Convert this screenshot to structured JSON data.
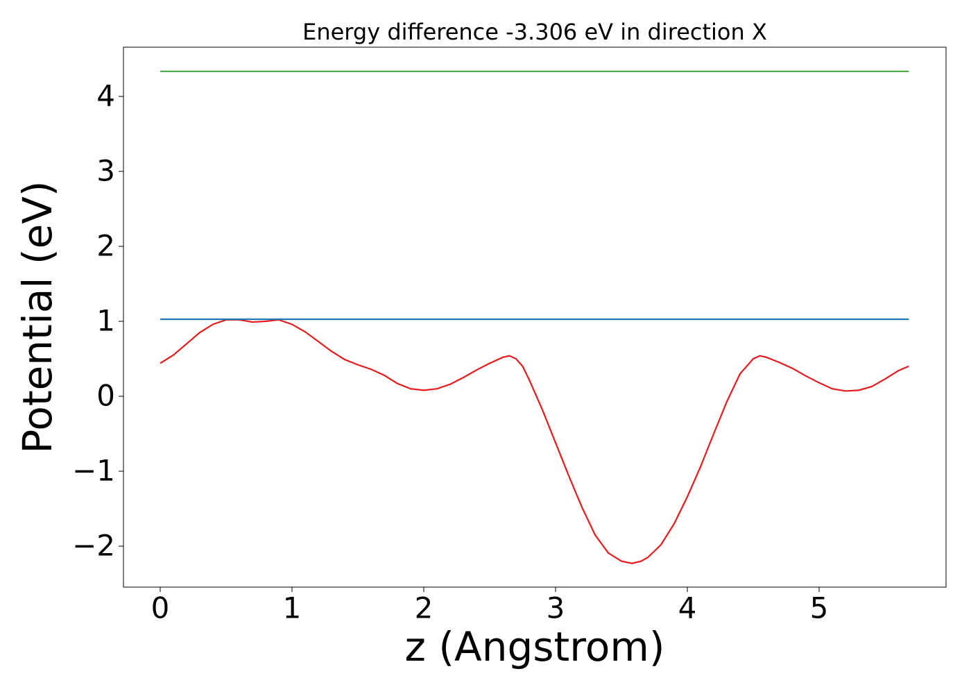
{
  "chart_data": {
    "type": "line",
    "title": "Energy difference -3.306 eV in direction X",
    "xlabel": "z (Angstrom)",
    "ylabel": "Potential (eV)",
    "xlim": [
      -0.279,
      5.963
    ],
    "ylim": [
      -2.546,
      4.657
    ],
    "xticks": [
      0,
      1,
      2,
      3,
      4,
      5
    ],
    "yticks": [
      {
        "value": -2,
        "label": "−2"
      },
      {
        "value": -1,
        "label": "−1"
      },
      0,
      1,
      2,
      3,
      4
    ],
    "grid": false,
    "series": [
      {
        "color": "#e41a1c",
        "x": [
          0,
          0.1,
          0.2,
          0.3,
          0.4,
          0.5,
          0.6,
          0.7,
          0.8,
          0.9,
          1.0,
          1.1,
          1.2,
          1.3,
          1.4,
          1.5,
          1.6,
          1.7,
          1.8,
          1.9,
          2.0,
          2.1,
          2.2,
          2.3,
          2.4,
          2.5,
          2.6,
          2.65,
          2.7,
          2.75,
          2.8,
          2.9,
          3.0,
          3.1,
          3.2,
          3.3,
          3.4,
          3.5,
          3.58,
          3.65,
          3.7,
          3.8,
          3.9,
          4.0,
          4.1,
          4.2,
          4.3,
          4.4,
          4.5,
          4.55,
          4.6,
          4.7,
          4.8,
          4.9,
          5.0,
          5.1,
          5.2,
          5.3,
          5.4,
          5.5,
          5.6,
          5.68
        ],
        "values": [
          0.44,
          0.55,
          0.7,
          0.85,
          0.96,
          1.02,
          1.02,
          0.99,
          1.0,
          1.02,
          0.96,
          0.86,
          0.73,
          0.6,
          0.49,
          0.42,
          0.36,
          0.28,
          0.17,
          0.1,
          0.08,
          0.1,
          0.16,
          0.25,
          0.35,
          0.44,
          0.52,
          0.54,
          0.5,
          0.4,
          0.22,
          -0.18,
          -0.62,
          -1.06,
          -1.48,
          -1.85,
          -2.09,
          -2.2,
          -2.23,
          -2.2,
          -2.15,
          -1.98,
          -1.7,
          -1.34,
          -0.94,
          -0.5,
          -0.07,
          0.3,
          0.5,
          0.54,
          0.52,
          0.45,
          0.37,
          0.27,
          0.18,
          0.1,
          0.07,
          0.08,
          0.13,
          0.23,
          0.34,
          0.4
        ]
      },
      {
        "color": "#1f77b4",
        "x": [
          0,
          5.68
        ],
        "values": [
          1.028,
          1.028
        ]
      },
      {
        "color": "#4daf4a",
        "x": [
          0,
          5.68
        ],
        "values": [
          4.334,
          4.334
        ]
      }
    ]
  }
}
